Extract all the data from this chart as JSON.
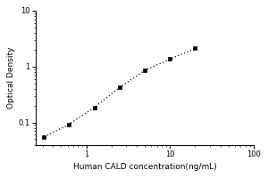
{
  "x_values": [
    0.313,
    0.625,
    1.25,
    2.5,
    5.0,
    10.0,
    20.0
  ],
  "y_values": [
    0.055,
    0.093,
    0.185,
    0.42,
    0.85,
    1.35,
    2.1
  ],
  "xlabel": "Human CALD concentration(ng/mL)",
  "ylabel": "Optical Density",
  "xlim": [
    0.25,
    100
  ],
  "ylim": [
    0.04,
    10
  ],
  "marker": "s",
  "marker_color": "black",
  "marker_size": 3,
  "line_color": "black",
  "background_color": "#ffffff",
  "x_tick_vals": [
    1,
    10,
    100
  ],
  "x_tick_labels": [
    "1",
    "10",
    "100"
  ],
  "y_tick_vals": [
    0.1,
    1,
    10
  ],
  "y_tick_labels": [
    "0.1",
    "1",
    "10"
  ],
  "axis_fontsize": 6,
  "label_fontsize": 6.5
}
